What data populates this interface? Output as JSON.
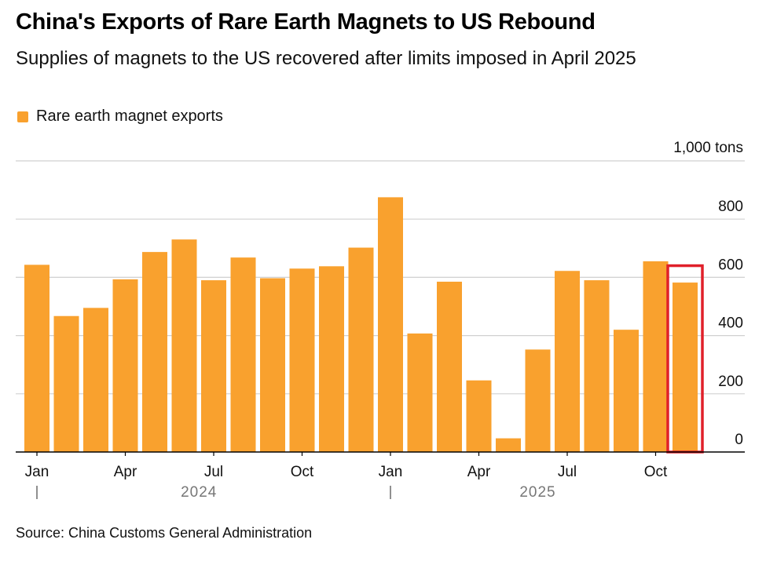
{
  "header": {
    "title": "China's Exports of Rare Earth Magnets to US Rebound",
    "subtitle": "Supplies of magnets to the US recovered after limits imposed in April 2025"
  },
  "legend": {
    "label": "Rare earth magnet exports"
  },
  "source": "Source: China Customs General Administration",
  "colors": {
    "bar": "#F9A12E",
    "highlight": "#E0202A",
    "grid": "#D0D0D0",
    "axis": "#000000"
  },
  "chart_data": {
    "type": "bar",
    "title": "China's Exports of Rare Earth Magnets to US Rebound",
    "unit_label": "1,000 tons",
    "ylim": [
      0,
      1000
    ],
    "yticks": [
      0,
      200,
      400,
      600,
      800
    ],
    "series": [
      {
        "name": "Rare earth magnet exports",
        "categories": [
          "2024-01",
          "2024-02",
          "2024-03",
          "2024-04",
          "2024-05",
          "2024-06",
          "2024-07",
          "2024-08",
          "2024-09",
          "2024-10",
          "2024-11",
          "2024-12",
          "2025-01",
          "2025-02",
          "2025-03",
          "2025-04",
          "2025-05",
          "2025-06",
          "2025-07",
          "2025-08",
          "2025-09",
          "2025-10",
          "2025-11"
        ],
        "values": [
          643,
          467,
          495,
          593,
          687,
          730,
          590,
          668,
          597,
          630,
          638,
          702,
          875,
          407,
          585,
          246,
          47,
          352,
          622,
          590,
          420,
          655,
          582
        ]
      }
    ],
    "x_tick_labels": [
      {
        "index": 0,
        "label": "Jan"
      },
      {
        "index": 3,
        "label": "Apr"
      },
      {
        "index": 6,
        "label": "Jul"
      },
      {
        "index": 9,
        "label": "Oct"
      },
      {
        "index": 12,
        "label": "Jan"
      },
      {
        "index": 15,
        "label": "Apr"
      },
      {
        "index": 18,
        "label": "Jul"
      },
      {
        "index": 21,
        "label": "Oct"
      }
    ],
    "years": [
      {
        "label": "2024",
        "start_index": 0,
        "end_index": 11
      },
      {
        "label": "2025",
        "start_index": 12,
        "end_index": 22
      }
    ],
    "highlighted_index": 22
  }
}
